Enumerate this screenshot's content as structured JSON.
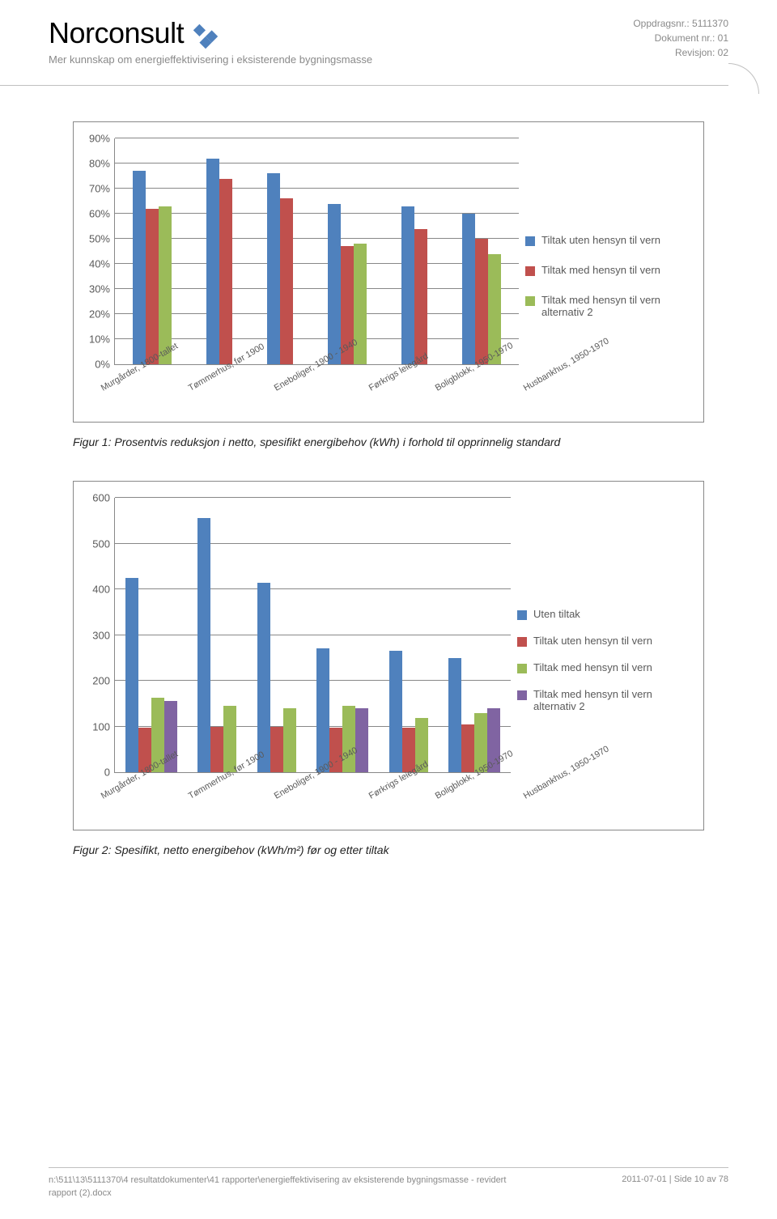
{
  "header": {
    "logo": "Norconsult",
    "subheader": "Mer kunnskap om energieffektivisering i eksisterende bygningsmasse",
    "right": {
      "l1": "Oppdragsnr.: 5111370",
      "l2": "Dokument nr.: 01",
      "l3": "Revisjon: 02"
    }
  },
  "colors": {
    "blue": "#4f81bd",
    "red": "#c0504d",
    "green": "#9bbb59",
    "purple": "#8064a2",
    "border": "#888888",
    "grid": "#888888",
    "bg": "#ffffff"
  },
  "chart1": {
    "type": "bar",
    "categories": [
      "Murgårder, 1800-tallet",
      "Tømmerhus, før 1900",
      "Eneboliger, 1900 - 1940",
      "Førkrigs leiegård",
      "Boligblokk, 1950-1970",
      "Husbankhus, 1950-1970"
    ],
    "y_ticks": [
      "0%",
      "10%",
      "20%",
      "30%",
      "40%",
      "50%",
      "60%",
      "70%",
      "80%",
      "90%"
    ],
    "y_max": 90,
    "series": [
      {
        "name": "Tiltak uten hensyn til vern",
        "color_key": "blue",
        "values": [
          77,
          82,
          76,
          64,
          63,
          60
        ]
      },
      {
        "name": "Tiltak med hensyn til vern",
        "color_key": "red",
        "values": [
          62,
          74,
          66,
          47,
          54,
          50
        ]
      },
      {
        "name": "Tiltak med hensyn til vern alternativ 2",
        "color_key": "green",
        "values": [
          63,
          0,
          0,
          48,
          0,
          44
        ]
      }
    ]
  },
  "caption1": "Figur 1: Prosentvis reduksjon i netto, spesifikt energibehov (kWh) i forhold til opprinnelig standard",
  "chart2": {
    "type": "bar",
    "categories": [
      "Murgårder, 1800-tallet",
      "Tømmerhus, før 1900",
      "Eneboliger, 1900 - 1940",
      "Førkrigs leiegård",
      "Boligblokk, 1950-1970",
      "Husbankhus, 1950-1970"
    ],
    "y_ticks": [
      "0",
      "100",
      "200",
      "300",
      "400",
      "500",
      "600"
    ],
    "y_max": 600,
    "series": [
      {
        "name": "Uten tiltak",
        "color_key": "blue",
        "values": [
          425,
          555,
          415,
          270,
          265,
          250
        ]
      },
      {
        "name": "Tiltak uten hensyn til vern",
        "color_key": "red",
        "values": [
          97,
          100,
          100,
          97,
          97,
          105
        ]
      },
      {
        "name": "Tiltak med hensyn til vern",
        "color_key": "green",
        "values": [
          162,
          145,
          140,
          145,
          118,
          130
        ]
      },
      {
        "name": "Tiltak med hensyn til vern alternativ 2",
        "color_key": "purple",
        "values": [
          155,
          0,
          0,
          140,
          0,
          140
        ]
      }
    ]
  },
  "caption2": "Figur 2: Spesifikt, netto energibehov (kWh/m²) før og etter tiltak",
  "footer": {
    "left": "n:\\511\\13\\5111370\\4 resultatdokumenter\\41 rapporter\\energieffektivisering av eksisterende bygningsmasse - revidert rapport (2).docx",
    "right": "2011-07-01 | Side 10 av 78"
  }
}
